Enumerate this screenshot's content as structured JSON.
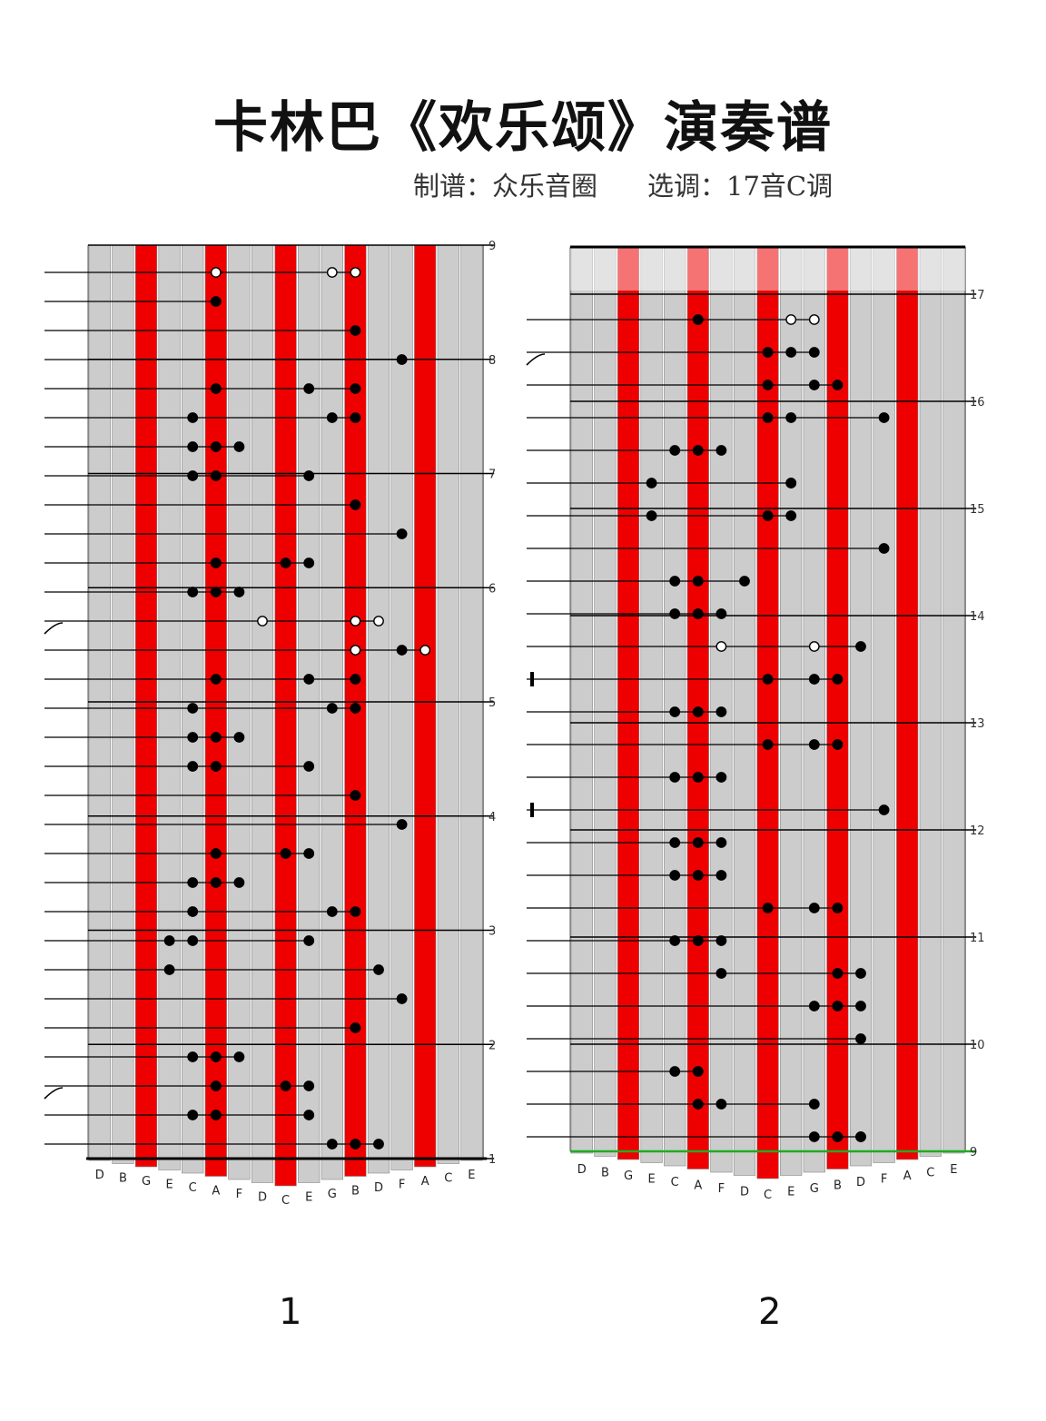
{
  "header": {
    "title": "卡林巴《欢乐颂》演奏谱",
    "arranger": "制谱：众乐音圈",
    "key": "选调：17音C调"
  },
  "instrument": {
    "keys": [
      "D",
      "B",
      "G",
      "E",
      "C",
      "A",
      "F",
      "D",
      "C",
      "E",
      "G",
      "B",
      "D",
      "F",
      "A",
      "C",
      "E"
    ],
    "red_tines": [
      2,
      5,
      8,
      11,
      14
    ],
    "colors": {
      "tine": "#cccccc",
      "red": "#ee0000",
      "line": "#000000",
      "end_line": "#22aa22"
    }
  },
  "panels": [
    {
      "page_label": "1",
      "measure_numbers": [
        "1",
        "2",
        "3",
        "4",
        "5",
        "6",
        "7",
        "8",
        "9"
      ],
      "grace_rows": [
        2,
        18
      ],
      "rows": [
        {
          "notes": [
            [
              10,
              "b"
            ],
            [
              11,
              "b"
            ],
            [
              12,
              "b"
            ]
          ]
        },
        {
          "notes": [
            [
              4,
              "b"
            ],
            [
              5,
              "b"
            ],
            [
              9,
              "b"
            ]
          ]
        },
        {
          "notes": [
            [
              5,
              "b"
            ],
            [
              8,
              "b"
            ],
            [
              9,
              "b"
            ]
          ]
        },
        {
          "notes": [
            [
              4,
              "b"
            ],
            [
              5,
              "b"
            ],
            [
              6,
              "b"
            ]
          ]
        },
        {
          "notes": [
            [
              11,
              "b"
            ]
          ]
        },
        {
          "notes": [
            [
              13,
              "b"
            ]
          ]
        },
        {
          "notes": [
            [
              3,
              "b"
            ],
            [
              12,
              "b"
            ]
          ]
        },
        {
          "notes": [
            [
              3,
              "b"
            ],
            [
              4,
              "b"
            ],
            [
              9,
              "b"
            ]
          ]
        },
        {
          "notes": [
            [
              4,
              "b"
            ],
            [
              10,
              "b"
            ],
            [
              11,
              "b"
            ]
          ]
        },
        {
          "notes": [
            [
              4,
              "b"
            ],
            [
              5,
              "b"
            ],
            [
              6,
              "b"
            ]
          ]
        },
        {
          "notes": [
            [
              5,
              "b"
            ],
            [
              8,
              "b"
            ],
            [
              9,
              "b"
            ]
          ]
        },
        {
          "notes": [
            [
              13,
              "b"
            ]
          ]
        },
        {
          "notes": [
            [
              11,
              "b"
            ]
          ]
        },
        {
          "notes": [
            [
              4,
              "b"
            ],
            [
              5,
              "b"
            ],
            [
              9,
              "b"
            ]
          ]
        },
        {
          "notes": [
            [
              4,
              "b"
            ],
            [
              5,
              "b"
            ],
            [
              6,
              "b"
            ]
          ]
        },
        {
          "notes": [
            [
              4,
              "b"
            ],
            [
              10,
              "b"
            ],
            [
              11,
              "b"
            ]
          ]
        },
        {
          "notes": [
            [
              5,
              "b"
            ],
            [
              9,
              "b"
            ],
            [
              11,
              "b"
            ]
          ]
        },
        {
          "notes": [
            [
              13,
              "b"
            ],
            [
              14,
              "w"
            ],
            [
              11,
              "w"
            ]
          ]
        },
        {
          "notes": [
            [
              7,
              "w"
            ],
            [
              11,
              "w"
            ],
            [
              12,
              "w"
            ]
          ]
        },
        {
          "notes": [
            [
              4,
              "b"
            ],
            [
              5,
              "b"
            ],
            [
              6,
              "b"
            ]
          ]
        },
        {
          "notes": [
            [
              5,
              "b"
            ],
            [
              8,
              "b"
            ],
            [
              9,
              "b"
            ]
          ]
        },
        {
          "notes": [
            [
              13,
              "b"
            ]
          ]
        },
        {
          "notes": [
            [
              11,
              "b"
            ]
          ]
        },
        {
          "notes": [
            [
              4,
              "b"
            ],
            [
              5,
              "b"
            ],
            [
              9,
              "b"
            ]
          ]
        },
        {
          "notes": [
            [
              4,
              "b"
            ],
            [
              5,
              "b"
            ],
            [
              6,
              "b"
            ]
          ]
        },
        {
          "notes": [
            [
              4,
              "b"
            ],
            [
              10,
              "b"
            ],
            [
              11,
              "b"
            ]
          ]
        },
        {
          "notes": [
            [
              5,
              "b"
            ],
            [
              9,
              "b"
            ],
            [
              11,
              "b"
            ]
          ]
        },
        {
          "notes": [
            [
              13,
              "b"
            ]
          ]
        },
        {
          "notes": [
            [
              11,
              "b"
            ]
          ]
        },
        {
          "notes": [
            [
              5,
              "b"
            ]
          ]
        },
        {
          "notes": [
            [
              5,
              "w"
            ],
            [
              10,
              "w"
            ],
            [
              11,
              "w"
            ]
          ]
        }
      ]
    },
    {
      "page_label": "2",
      "measure_numbers": [
        "9",
        "10",
        "11",
        "12",
        "13",
        "14",
        "15",
        "16",
        "17"
      ],
      "grace_rows": [
        24
      ],
      "bracket_rows": [
        10,
        14
      ],
      "rows": [
        {
          "notes": [
            [
              10,
              "b"
            ],
            [
              11,
              "b"
            ],
            [
              12,
              "b"
            ],
            [
              12,
              "b"
            ]
          ]
        },
        {
          "notes": [
            [
              6,
              "b"
            ],
            [
              5,
              "b"
            ],
            [
              10,
              "b"
            ]
          ]
        },
        {
          "notes": [
            [
              4,
              "b"
            ],
            [
              5,
              "b"
            ]
          ]
        },
        {
          "notes": [
            [
              12,
              "b"
            ]
          ]
        },
        {
          "notes": [
            [
              10,
              "b"
            ],
            [
              11,
              "b"
            ],
            [
              12,
              "b"
            ]
          ]
        },
        {
          "notes": [
            [
              6,
              "b"
            ],
            [
              11,
              "b"
            ],
            [
              12,
              "b"
            ]
          ]
        },
        {
          "notes": [
            [
              4,
              "b"
            ],
            [
              5,
              "b"
            ],
            [
              6,
              "b"
            ]
          ]
        },
        {
          "notes": [
            [
              8,
              "b"
            ],
            [
              10,
              "b"
            ],
            [
              11,
              "b"
            ]
          ]
        },
        {
          "notes": [
            [
              4,
              "b"
            ],
            [
              5,
              "b"
            ],
            [
              6,
              "b"
            ]
          ]
        },
        {
          "notes": [
            [
              4,
              "b"
            ],
            [
              5,
              "b"
            ],
            [
              6,
              "b"
            ]
          ]
        },
        {
          "notes": [
            [
              13,
              "b"
            ]
          ]
        },
        {
          "notes": [
            [
              4,
              "b"
            ],
            [
              5,
              "b"
            ],
            [
              6,
              "b"
            ]
          ]
        },
        {
          "notes": [
            [
              8,
              "b"
            ],
            [
              10,
              "b"
            ],
            [
              11,
              "b"
            ]
          ]
        },
        {
          "notes": [
            [
              4,
              "b"
            ],
            [
              5,
              "b"
            ],
            [
              6,
              "b"
            ]
          ]
        },
        {
          "notes": [
            [
              8,
              "b"
            ],
            [
              10,
              "b"
            ],
            [
              11,
              "b"
            ]
          ]
        },
        {
          "notes": [
            [
              6,
              "w"
            ],
            [
              10,
              "w"
            ],
            [
              12,
              "b"
            ]
          ]
        },
        {
          "notes": [
            [
              4,
              "b"
            ],
            [
              5,
              "b"
            ],
            [
              6,
              "b"
            ]
          ]
        },
        {
          "notes": [
            [
              4,
              "b"
            ],
            [
              5,
              "b"
            ],
            [
              7,
              "b"
            ]
          ]
        },
        {
          "notes": [
            [
              13,
              "b"
            ]
          ]
        },
        {
          "notes": [
            [
              3,
              "b"
            ],
            [
              8,
              "b"
            ],
            [
              9,
              "b"
            ]
          ]
        },
        {
          "notes": [
            [
              3,
              "b"
            ],
            [
              9,
              "b"
            ],
            [
              9,
              "b"
            ]
          ]
        },
        {
          "notes": [
            [
              4,
              "b"
            ],
            [
              5,
              "b"
            ],
            [
              6,
              "b"
            ]
          ]
        },
        {
          "notes": [
            [
              13,
              "b"
            ],
            [
              8,
              "b"
            ],
            [
              9,
              "b"
            ]
          ]
        },
        {
          "notes": [
            [
              8,
              "b"
            ],
            [
              10,
              "b"
            ],
            [
              11,
              "b"
            ]
          ]
        },
        {
          "notes": [
            [
              8,
              "b"
            ],
            [
              9,
              "b"
            ],
            [
              10,
              "b"
            ]
          ]
        },
        {
          "notes": [
            [
              5,
              "b"
            ],
            [
              9,
              "w"
            ],
            [
              10,
              "w"
            ]
          ]
        }
      ]
    }
  ]
}
